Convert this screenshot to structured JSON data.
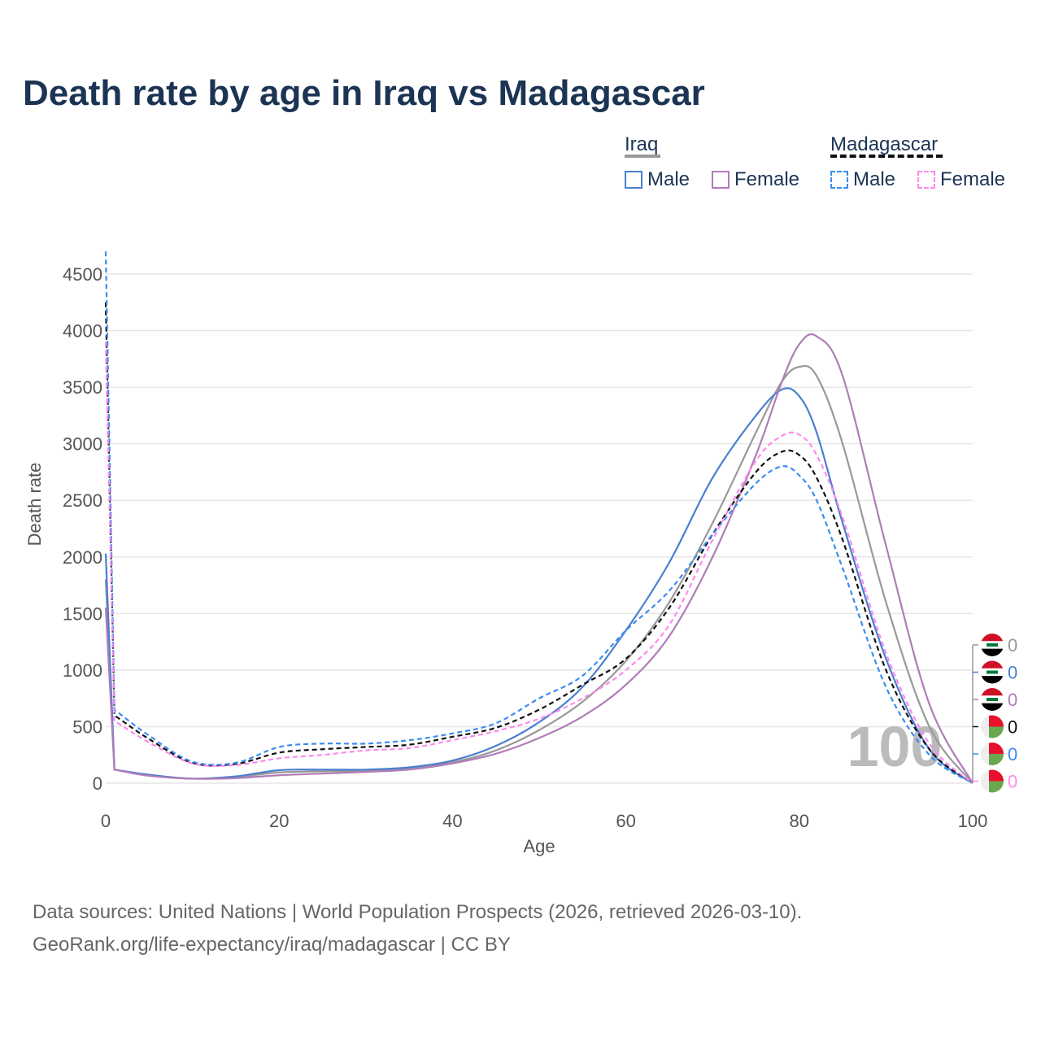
{
  "title": "Death rate by age in Iraq vs Madagascar",
  "legend": {
    "group1": "Iraq",
    "group2": "Madagascar",
    "male": "Male",
    "female": "Female"
  },
  "source_line1": "Data sources: United Nations | World Population Prospects (2026, retrieved 2026-03-10).",
  "source_line2": "GeoRank.org/life-expectancy/iraq/madagascar | CC BY",
  "watermark_year": "100",
  "chart_data": {
    "type": "line",
    "xlabel": "Age",
    "ylabel": "Death rate",
    "xlim": [
      0,
      100
    ],
    "ylim": [
      0,
      4500
    ],
    "xticks": [
      0,
      20,
      40,
      60,
      80,
      100
    ],
    "yticks": [
      0,
      500,
      1000,
      1500,
      2000,
      2500,
      3000,
      3500,
      4000,
      4500
    ],
    "x": [
      0,
      1,
      5,
      10,
      15,
      20,
      25,
      30,
      35,
      40,
      45,
      50,
      55,
      60,
      65,
      70,
      75,
      78,
      80,
      82,
      85,
      90,
      95,
      100
    ],
    "series": [
      {
        "name": "Iraq Total",
        "color": "#999999",
        "dash": false,
        "end_label": "0",
        "flag": "iraq",
        "values": [
          1800,
          120,
          70,
          40,
          55,
          95,
          105,
          110,
          135,
          185,
          290,
          470,
          720,
          1080,
          1600,
          2300,
          3100,
          3550,
          3680,
          3600,
          3000,
          1600,
          500,
          0
        ]
      },
      {
        "name": "Iraq Male",
        "color": "#4a7fcf",
        "dash": false,
        "end_label": "0",
        "flag": "iraq",
        "values": [
          2030,
          120,
          75,
          40,
          60,
          115,
          120,
          120,
          140,
          200,
          330,
          540,
          850,
          1350,
          1950,
          2700,
          3250,
          3480,
          3420,
          3100,
          2300,
          1100,
          300,
          0
        ]
      },
      {
        "name": "Iraq Female",
        "color": "#b07cb8",
        "dash": false,
        "end_label": "0",
        "flag": "iraq",
        "values": [
          1550,
          120,
          65,
          40,
          45,
          70,
          85,
          100,
          120,
          175,
          260,
          400,
          590,
          870,
          1300,
          2000,
          2900,
          3550,
          3880,
          3950,
          3600,
          2100,
          700,
          0
        ]
      },
      {
        "name": "Madagascar Total",
        "color": "#111111",
        "dash": true,
        "end_label": "0",
        "flag": "madagascar",
        "values": [
          4250,
          600,
          390,
          180,
          170,
          270,
          300,
          320,
          340,
          410,
          490,
          650,
          870,
          1100,
          1550,
          2200,
          2750,
          2930,
          2900,
          2700,
          2150,
          1000,
          300,
          0
        ]
      },
      {
        "name": "Madagascar Male",
        "color": "#3b8cf0",
        "dash": true,
        "end_label": "0",
        "flag": "madagascar",
        "values": [
          4700,
          650,
          420,
          190,
          180,
          320,
          350,
          350,
          380,
          440,
          530,
          750,
          950,
          1350,
          1700,
          2200,
          2650,
          2800,
          2720,
          2500,
          1900,
          850,
          250,
          0
        ]
      },
      {
        "name": "Madagascar Female",
        "color": "#ff88ee",
        "dash": true,
        "end_label": "0",
        "flag": "madagascar",
        "values": [
          3900,
          550,
          360,
          175,
          160,
          220,
          250,
          290,
          310,
          380,
          460,
          570,
          750,
          1000,
          1400,
          2150,
          2850,
          3070,
          3080,
          2900,
          2350,
          1150,
          350,
          0
        ]
      }
    ]
  }
}
